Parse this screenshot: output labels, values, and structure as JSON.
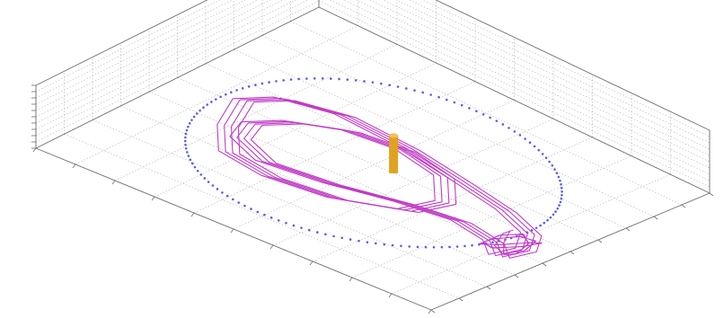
{
  "colors": {
    "box_edge": "#6e6e6e",
    "grid_line": "#9a9a9a",
    "ring": "#5b5bf0",
    "trajectory": "#c23ac8",
    "cylinder": "#e0a320"
  },
  "chart_data": {
    "type": "scatter",
    "projection": "3d",
    "title": "",
    "xlabel": "",
    "ylabel": "",
    "zlabel": "",
    "grid": true,
    "xlim": [
      -100,
      100
    ],
    "ylim": [
      -100,
      100
    ],
    "zlim": [
      0,
      20
    ],
    "series": [
      {
        "kind": "ring",
        "marker": "dot",
        "color": "#5b5bf0",
        "center": [
          0,
          0,
          0
        ],
        "radius": 78,
        "points": 140
      },
      {
        "kind": "cylinder",
        "color": "#e0a320",
        "center": [
          10,
          0,
          0
        ],
        "radius": 2,
        "height": 12
      },
      {
        "kind": "trajectory",
        "color": "#c23ac8",
        "points": [
          [
            -70,
            5,
            0
          ],
          [
            -60,
            -20,
            0
          ],
          [
            -45,
            -40,
            0
          ],
          [
            -20,
            -45,
            0
          ],
          [
            10,
            -40,
            0
          ],
          [
            35,
            -25,
            0
          ],
          [
            40,
            -5,
            0
          ],
          [
            25,
            15,
            0
          ],
          [
            0,
            22,
            0
          ],
          [
            -25,
            18,
            0
          ],
          [
            -45,
            5,
            0
          ],
          [
            -55,
            -10,
            0
          ],
          [
            -50,
            -25,
            0
          ],
          [
            -30,
            -35,
            0
          ],
          [
            0,
            -30,
            0
          ],
          [
            30,
            -20,
            0
          ],
          [
            55,
            -15,
            0
          ],
          [
            75,
            -20,
            0
          ],
          [
            85,
            -30,
            0
          ],
          [
            88,
            -15,
            0
          ],
          [
            80,
            0,
            0
          ],
          [
            60,
            10,
            0
          ],
          [
            30,
            18,
            0
          ],
          [
            0,
            25,
            0
          ],
          [
            -35,
            28,
            0
          ],
          [
            -60,
            20,
            0
          ],
          [
            -70,
            5,
            0
          ]
        ]
      }
    ]
  }
}
